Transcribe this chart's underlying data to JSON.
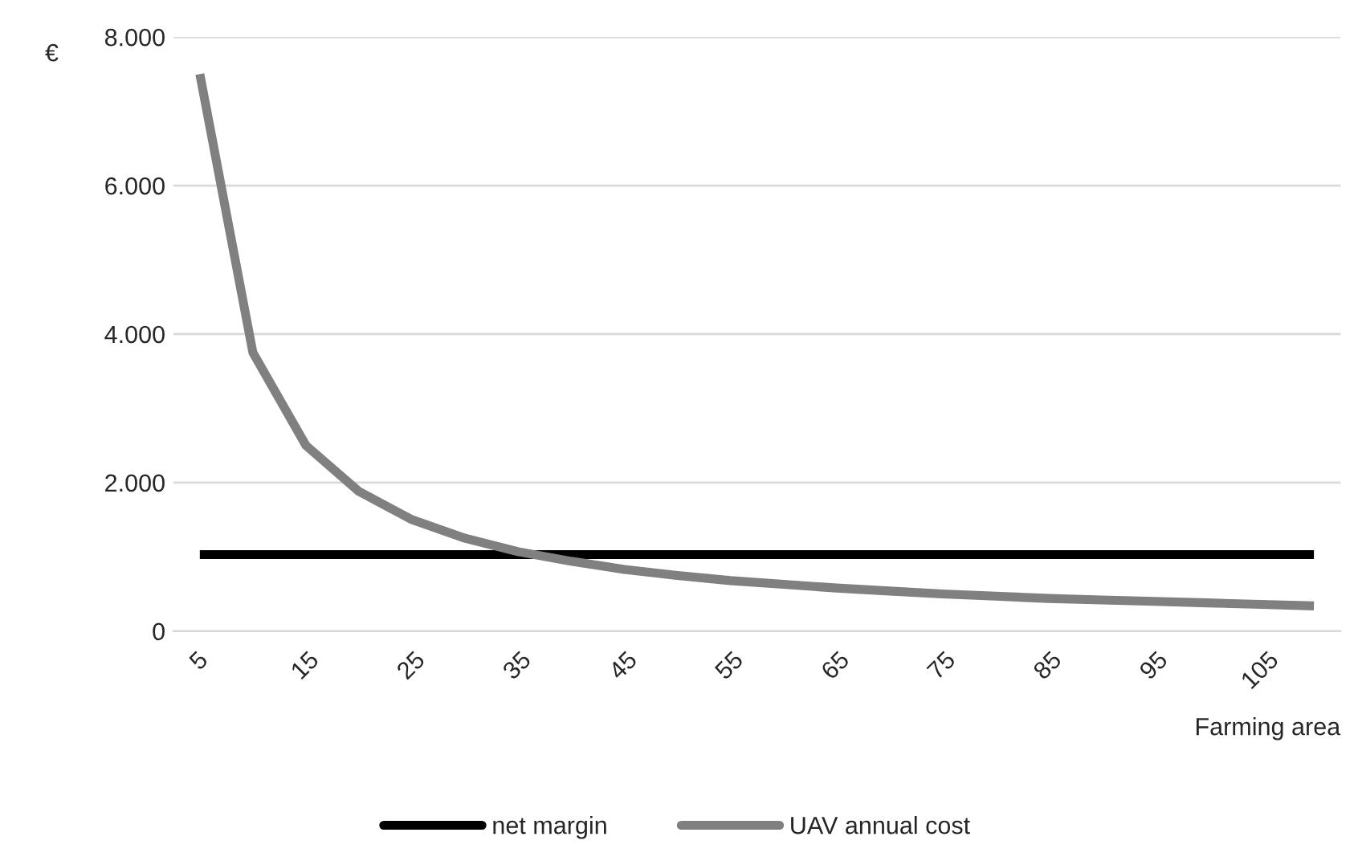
{
  "chart_data": {
    "type": "line",
    "ylabel": "€",
    "xlabel": "Farming area",
    "categories": [
      "5",
      null,
      "15",
      null,
      "25",
      null,
      "35",
      null,
      "45",
      null,
      "55",
      null,
      "65",
      null,
      "75",
      null,
      "85",
      null,
      "95",
      null,
      "105",
      null
    ],
    "series": [
      {
        "name": "net margin",
        "color": "#000000",
        "values": [
          1030,
          1030,
          1030,
          1030,
          1030,
          1030,
          1030,
          1030,
          1030,
          1030,
          1030,
          1030,
          1030,
          1030,
          1030,
          1030,
          1030,
          1030,
          1030,
          1030,
          1030,
          1030
        ]
      },
      {
        "name": "UAV annual cost",
        "color": "#808080",
        "values": [
          7500,
          3750,
          2500,
          1880,
          1500,
          1250,
          1070,
          940,
          830,
          750,
          680,
          630,
          580,
          540,
          500,
          470,
          440,
          420,
          400,
          380,
          360,
          340
        ]
      }
    ],
    "ylim": [
      0,
      8000
    ],
    "yticks": [
      0,
      {
        "value": 2000,
        "label": "2.000"
      },
      {
        "value": 4000,
        "label": "4.000"
      },
      {
        "value": 6000,
        "label": "6.000"
      },
      {
        "value": 8000,
        "label": "8.000"
      }
    ],
    "grid": "y",
    "legend": "bottom",
    "marker": "none",
    "line_style": "solid"
  }
}
